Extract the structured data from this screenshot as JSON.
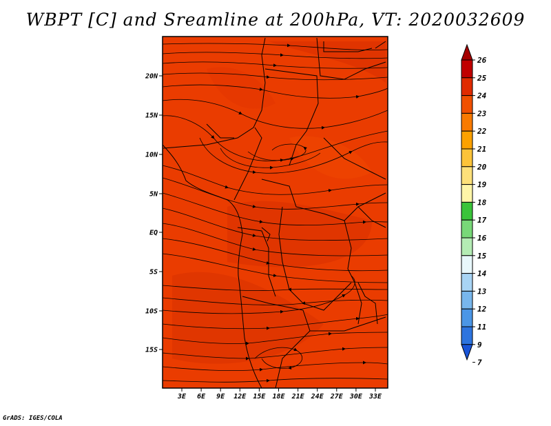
{
  "title": "WBPT [C] and Sreamline at 200hPa, VT: 2020032609",
  "credit": "GrADS: IGES/COLA",
  "lat_labels": [
    "20N",
    "15N",
    "10N",
    "5N",
    "EQ",
    "5S",
    "10S",
    "15S"
  ],
  "lon_labels": [
    "3E",
    "6E",
    "9E",
    "12E",
    "15E",
    "18E",
    "21E",
    "24E",
    "27E",
    "30E",
    "33E"
  ],
  "colorbar": {
    "labels": [
      "26",
      "25",
      "24",
      "23",
      "22",
      "21",
      "20",
      "19",
      "18",
      "17",
      "16",
      "15",
      "14",
      "13",
      "12",
      "11",
      "9",
      "7"
    ],
    "colors": [
      "#a50000",
      "#c00000",
      "#e02b00",
      "#f05000",
      "#f87a00",
      "#fca100",
      "#fcc33a",
      "#fde07a",
      "#fef5a8",
      "#3ac43a",
      "#78d878",
      "#b4ecb4",
      "#e8f7fb",
      "#a8d4f4",
      "#78b6ec",
      "#4b96e6",
      "#2d74df",
      "#1a55d8"
    ]
  },
  "map": {
    "variable": "Wet-bulb potential temperature",
    "units": "C",
    "level": "200hPa",
    "dominant_range_c": [
      22,
      25
    ],
    "background_color": "#ea3c00"
  }
}
